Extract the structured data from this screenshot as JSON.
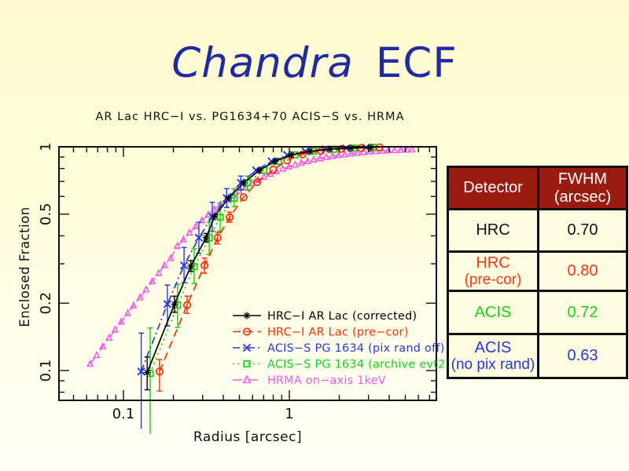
{
  "slide": {
    "title_italic": "Chandra",
    "title_regular": "ECF",
    "title_color": "#2029A6"
  },
  "chart_data": {
    "type": "line",
    "title": "AR Lac HRC−I vs. PG1634+70 ACIS−S vs. HRMA",
    "xlabel": "Radius [arcsec]",
    "ylabel": "Enclosed Fraction",
    "xscale": "log",
    "yscale": "log",
    "xlim": [
      0.041,
      7.7
    ],
    "ylim": [
      0.074,
      1.0
    ],
    "grid": false,
    "xticks": {
      "major": [
        0.1,
        1
      ],
      "labels": [
        "0.1",
        "1"
      ],
      "minor": [
        0.05,
        0.06,
        0.07,
        0.08,
        0.09,
        0.2,
        0.3,
        0.4,
        0.5,
        0.6,
        0.7,
        0.8,
        0.9,
        2,
        3,
        4,
        5,
        6,
        7
      ]
    },
    "yticks": {
      "major": [
        1,
        0.5,
        0.2,
        0.1
      ],
      "labels": [
        "1",
        "0.5",
        "0.2",
        "0.1"
      ],
      "minor": [
        0.9,
        0.8,
        0.7,
        0.6,
        0.4,
        0.3,
        0.09,
        0.08
      ]
    },
    "legend": {
      "position": "inside lower right",
      "x_line0": 296,
      "x_line1": 332,
      "x_text": 340,
      "y0": 402,
      "dy": 20.5
    },
    "series": [
      {
        "name": "HRC−I AR Lac (corrected)",
        "color": "#000000",
        "marker": "star",
        "dash": null,
        "width": 1.7,
        "points": [
          [
            0.139,
            0.098
          ],
          [
            0.203,
            0.198
          ],
          [
            0.255,
            0.293
          ],
          [
            0.315,
            0.392
          ],
          [
            0.355,
            0.49
          ],
          [
            0.43,
            0.59
          ],
          [
            0.53,
            0.69
          ],
          [
            0.66,
            0.785
          ],
          [
            0.82,
            0.862
          ],
          [
            1.03,
            0.92
          ],
          [
            1.33,
            0.955
          ],
          [
            1.76,
            0.976
          ],
          [
            2.35,
            0.987
          ],
          [
            3.1,
            0.993
          ]
        ],
        "errors": [
          {
            "i": 0,
            "lo": 0.082,
            "hi": 0.115
          },
          {
            "i": 1,
            "lo": 0.182,
            "hi": 0.215
          },
          {
            "i": 2,
            "lo": 0.277,
            "hi": 0.31
          },
          {
            "i": 3,
            "lo": 0.375,
            "hi": 0.41
          }
        ]
      },
      {
        "name": "HRC−I AR Lac (pre−cor)",
        "color": "#FF2D00",
        "marker": "circle",
        "dash": [
          10,
          6
        ],
        "width": 1.7,
        "points": [
          [
            0.165,
            0.099
          ],
          [
            0.242,
            0.196
          ],
          [
            0.308,
            0.295
          ],
          [
            0.37,
            0.392
          ],
          [
            0.437,
            0.484
          ],
          [
            0.53,
            0.595
          ],
          [
            0.64,
            0.695
          ],
          [
            0.8,
            0.79
          ],
          [
            0.97,
            0.87
          ],
          [
            1.2,
            0.925
          ],
          [
            1.55,
            0.958
          ],
          [
            2.05,
            0.978
          ],
          [
            2.7,
            0.988
          ],
          [
            3.5,
            0.994
          ]
        ],
        "errors": [
          {
            "i": 0,
            "lo": 0.081,
            "hi": 0.112
          },
          {
            "i": 1,
            "lo": 0.18,
            "hi": 0.215
          },
          {
            "i": 2,
            "lo": 0.272,
            "hi": 0.318
          },
          {
            "i": 3,
            "lo": 0.368,
            "hi": 0.415
          },
          {
            "i": 4,
            "lo": 0.46,
            "hi": 0.51
          }
        ]
      },
      {
        "name": "ACIS−S PG 1634 (pix rand off)",
        "color": "#2038F0",
        "marker": "x",
        "dash": [
          9,
          4,
          2,
          4
        ],
        "width": 1.7,
        "points": [
          [
            0.128,
            0.099
          ],
          [
            0.184,
            0.198
          ],
          [
            0.232,
            0.295
          ],
          [
            0.285,
            0.392
          ],
          [
            0.343,
            0.487
          ],
          [
            0.419,
            0.59
          ],
          [
            0.51,
            0.69
          ],
          [
            0.63,
            0.785
          ],
          [
            0.78,
            0.862
          ],
          [
            0.97,
            0.92
          ],
          [
            1.25,
            0.955
          ],
          [
            1.65,
            0.975
          ],
          [
            2.2,
            0.986
          ],
          [
            2.9,
            0.993
          ]
        ],
        "errors": [
          {
            "i": 0,
            "lo": 0.055,
            "hi": 0.147
          },
          {
            "i": 1,
            "lo": 0.158,
            "hi": 0.241
          },
          {
            "i": 2,
            "lo": 0.247,
            "hi": 0.355
          },
          {
            "i": 3,
            "lo": 0.334,
            "hi": 0.46
          },
          {
            "i": 4,
            "lo": 0.42,
            "hi": 0.565
          },
          {
            "i": 5,
            "lo": 0.535,
            "hi": 0.65
          },
          {
            "i": 6,
            "lo": 0.64,
            "hi": 0.74
          }
        ]
      },
      {
        "name": "ACIS−S PG 1634 (archive evt2)",
        "color": "#12D312",
        "marker": "square",
        "dash": [
          2,
          4.5
        ],
        "width": 1.7,
        "points": [
          [
            0.145,
            0.097
          ],
          [
            0.212,
            0.196
          ],
          [
            0.267,
            0.291
          ],
          [
            0.329,
            0.392
          ],
          [
            0.383,
            0.484
          ],
          [
            0.466,
            0.59
          ],
          [
            0.56,
            0.69
          ],
          [
            0.7,
            0.785
          ],
          [
            0.86,
            0.862
          ],
          [
            1.08,
            0.92
          ],
          [
            1.4,
            0.955
          ],
          [
            1.85,
            0.975
          ],
          [
            2.45,
            0.986
          ],
          [
            3.2,
            0.993
          ]
        ],
        "errors": [
          {
            "i": 0,
            "lo": 0.052,
            "hi": 0.155
          },
          {
            "i": 1,
            "lo": 0.156,
            "hi": 0.243
          },
          {
            "i": 2,
            "lo": 0.245,
            "hi": 0.35
          },
          {
            "i": 3,
            "lo": 0.33,
            "hi": 0.46
          },
          {
            "i": 4,
            "lo": 0.42,
            "hi": 0.56
          },
          {
            "i": 5,
            "lo": 0.54,
            "hi": 0.65
          },
          {
            "i": 6,
            "lo": 0.64,
            "hi": 0.74
          }
        ]
      },
      {
        "name": "HRMA on−axis 1keV",
        "color": "#F355F3",
        "marker": "triangle",
        "dash": [
          11,
          4,
          2,
          4
        ],
        "width": 1.5,
        "points": [
          [
            0.063,
            0.107
          ],
          [
            0.069,
            0.117
          ],
          [
            0.075,
            0.128
          ],
          [
            0.082,
            0.14
          ],
          [
            0.089,
            0.152
          ],
          [
            0.097,
            0.165
          ],
          [
            0.106,
            0.18
          ],
          [
            0.115,
            0.195
          ],
          [
            0.126,
            0.212
          ],
          [
            0.137,
            0.23
          ],
          [
            0.149,
            0.25
          ],
          [
            0.163,
            0.272
          ],
          [
            0.177,
            0.295
          ],
          [
            0.193,
            0.318
          ],
          [
            0.211,
            0.36
          ],
          [
            0.23,
            0.385
          ],
          [
            0.25,
            0.413
          ],
          [
            0.273,
            0.44
          ],
          [
            0.297,
            0.468
          ],
          [
            0.324,
            0.497
          ],
          [
            0.353,
            0.525
          ],
          [
            0.385,
            0.553
          ],
          [
            0.42,
            0.58
          ],
          [
            0.458,
            0.607
          ],
          [
            0.499,
            0.634
          ],
          [
            0.544,
            0.66
          ],
          [
            0.593,
            0.686
          ],
          [
            0.646,
            0.71
          ],
          [
            0.704,
            0.733
          ],
          [
            0.768,
            0.755
          ],
          [
            0.837,
            0.776
          ],
          [
            0.912,
            0.796
          ],
          [
            0.995,
            0.814
          ],
          [
            1.084,
            0.831
          ],
          [
            1.182,
            0.847
          ],
          [
            1.288,
            0.862
          ],
          [
            1.404,
            0.875
          ],
          [
            1.531,
            0.887
          ],
          [
            1.669,
            0.898
          ],
          [
            1.819,
            0.908
          ],
          [
            1.983,
            0.917
          ],
          [
            2.161,
            0.925
          ],
          [
            2.356,
            0.932
          ],
          [
            2.568,
            0.939
          ],
          [
            2.8,
            0.945
          ],
          [
            3.052,
            0.95
          ],
          [
            3.326,
            0.955
          ],
          [
            3.626,
            0.959
          ],
          [
            3.953,
            0.962
          ],
          [
            4.308,
            0.965
          ],
          [
            4.696,
            0.968
          ],
          [
            5.119,
            0.97
          ],
          [
            5.5,
            0.972
          ]
        ],
        "errors": []
      }
    ]
  },
  "table": {
    "header": {
      "col1": "Detector",
      "col2_line1": "FWHM",
      "col2_line2": "(arcsec)",
      "bg": "#9A1B10",
      "text_color": "#FFFFFF"
    },
    "rows": [
      {
        "name_line1": "HRC",
        "name_line2": "",
        "value": "0.70",
        "color": "#111111"
      },
      {
        "name_line1": "HRC",
        "name_line2": "(pre-cor)",
        "value": "0.80",
        "color": "#F23A12"
      },
      {
        "name_line1": "ACIS",
        "name_line2": "",
        "value": "0.72",
        "color": "#12D312"
      },
      {
        "name_line1": "ACIS",
        "name_line2": "(no pix rand)",
        "value": "0.63",
        "color": "#2238E0"
      }
    ]
  }
}
